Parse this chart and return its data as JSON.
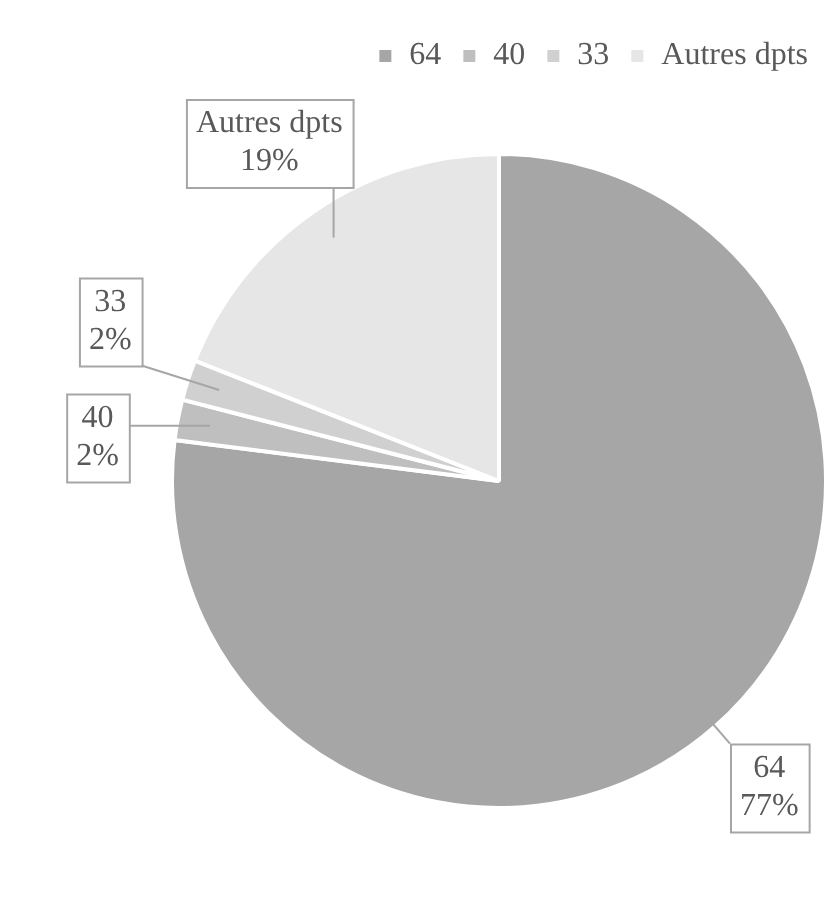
{
  "chart_data": {
    "type": "pie",
    "categories": [
      "64",
      "40",
      "33",
      "Autres dpts"
    ],
    "values": [
      77,
      2,
      2,
      19
    ],
    "value_labels": [
      "77%",
      "2%",
      "2%",
      "19%"
    ],
    "colors": [
      "#a6a6a6",
      "#bfbfbf",
      "#d0d0d0",
      "#e6e6e6"
    ],
    "legend": "top right"
  }
}
